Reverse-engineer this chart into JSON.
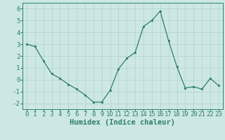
{
  "x": [
    0,
    1,
    2,
    3,
    4,
    5,
    6,
    7,
    8,
    9,
    10,
    11,
    12,
    13,
    14,
    15,
    16,
    17,
    18,
    19,
    20,
    21,
    22,
    23
  ],
  "y": [
    3.0,
    2.8,
    1.6,
    0.5,
    0.1,
    -0.4,
    -0.8,
    -1.3,
    -1.9,
    -1.9,
    -0.9,
    0.9,
    1.8,
    2.3,
    4.5,
    5.0,
    5.8,
    3.3,
    1.1,
    -0.7,
    -0.6,
    -0.8,
    0.1,
    -0.5
  ],
  "line_color": "#2e7d6e",
  "marker": "o",
  "marker_size": 1.8,
  "line_width": 0.9,
  "bg_color": "#cde8e4",
  "grid_color": "#b0d0cc",
  "xlabel": "Humidex (Indice chaleur)",
  "xlabel_fontsize": 7.5,
  "tick_fontsize": 6.5,
  "ylim": [
    -2.5,
    6.5
  ],
  "xlim": [
    -0.5,
    23.5
  ],
  "yticks": [
    -2,
    -1,
    0,
    1,
    2,
    3,
    4,
    5,
    6
  ],
  "xticks": [
    0,
    1,
    2,
    3,
    4,
    5,
    6,
    7,
    8,
    9,
    10,
    11,
    12,
    13,
    14,
    15,
    16,
    17,
    18,
    19,
    20,
    21,
    22,
    23
  ],
  "spine_color": "#2e7d6e",
  "tick_color": "#2e7d6e"
}
